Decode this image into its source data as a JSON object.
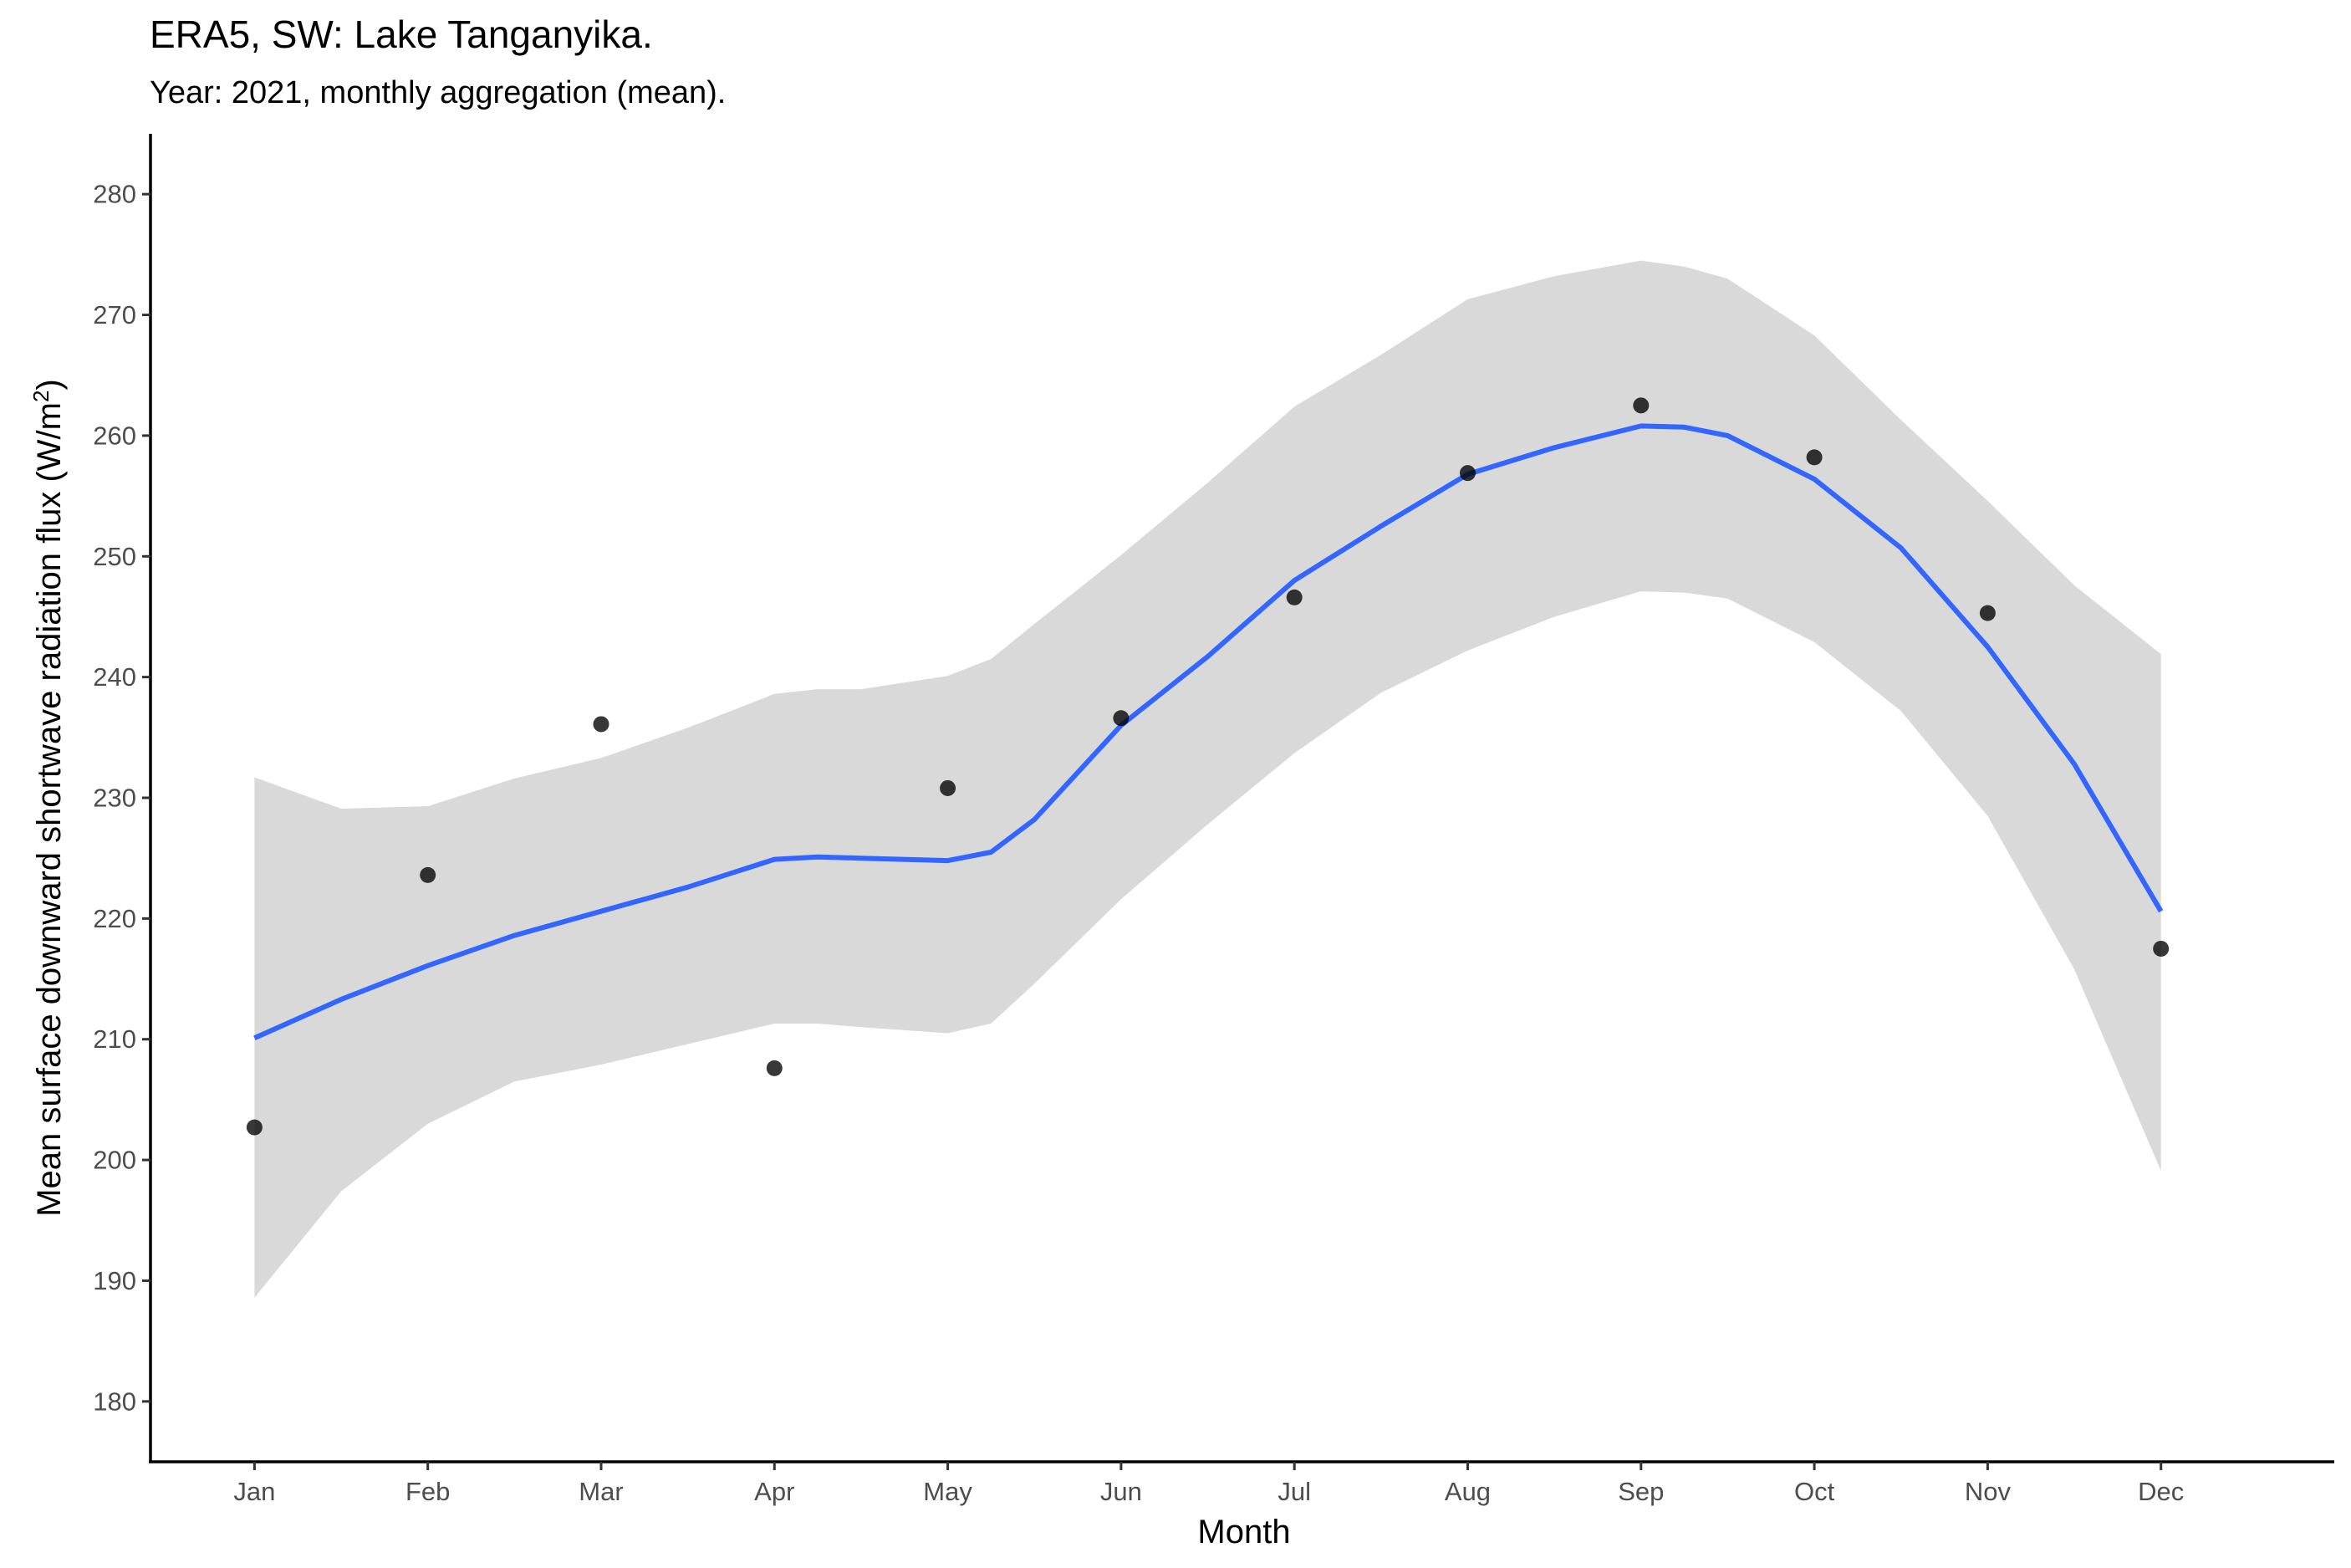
{
  "chart_data": {
    "type": "scatter",
    "title": "ERA5, SW: Lake Tanganyika.",
    "subtitle": "Year: 2021, monthly aggregation (mean).",
    "xlabel": "Month",
    "ylabel_main": "Mean surface downward shortwave radiation flux (W/m",
    "ylabel_sup": "2",
    "ylabel_end": ")",
    "categories": [
      "Jan",
      "Feb",
      "Mar",
      "Apr",
      "May",
      "Jun",
      "Jul",
      "Aug",
      "Sep",
      "Oct",
      "Nov",
      "Dec"
    ],
    "values": [
      202.7,
      223.6,
      236.1,
      207.6,
      230.8,
      236.6,
      246.6,
      256.9,
      262.5,
      258.2,
      245.3,
      217.5
    ],
    "yticks": [
      180,
      190,
      200,
      210,
      220,
      230,
      240,
      250,
      260,
      270,
      280
    ],
    "ylim": [
      175,
      285
    ],
    "xlim": [
      0.4,
      13.0
    ],
    "grid": false,
    "smooth": {
      "name": "loess fit",
      "color": "#3366ff",
      "x": [
        1,
        1.5,
        2,
        2.5,
        3,
        3.5,
        4,
        4.25,
        4.5,
        5,
        5.25,
        5.5,
        6,
        6.5,
        7,
        7.5,
        8,
        8.5,
        9,
        9.25,
        9.5,
        10,
        10.5,
        11,
        11.5,
        12
      ],
      "y": [
        210.1,
        213.3,
        216.1,
        218.6,
        220.6,
        222.6,
        224.9,
        225.1,
        225.0,
        224.8,
        225.5,
        228.2,
        236.0,
        241.7,
        248.0,
        252.5,
        256.8,
        259.0,
        260.8,
        260.7,
        260.0,
        256.4,
        250.7,
        242.5,
        232.8,
        220.6
      ],
      "lower": [
        188.6,
        197.4,
        203.0,
        206.5,
        207.9,
        209.6,
        211.3,
        211.3,
        211.0,
        210.5,
        211.3,
        214.6,
        221.6,
        227.8,
        233.7,
        238.7,
        242.2,
        245.0,
        247.1,
        247.0,
        246.5,
        242.9,
        237.2,
        228.5,
        215.8,
        199.1
      ],
      "upper": [
        231.7,
        229.1,
        229.3,
        231.6,
        233.3,
        235.8,
        238.6,
        239.0,
        239.0,
        240.1,
        241.5,
        244.4,
        250.1,
        256.1,
        262.4,
        266.7,
        271.3,
        273.2,
        274.5,
        274.0,
        273.0,
        268.3,
        261.3,
        254.6,
        247.6,
        241.9
      ],
      "band_color": "#d9d9d9"
    }
  }
}
